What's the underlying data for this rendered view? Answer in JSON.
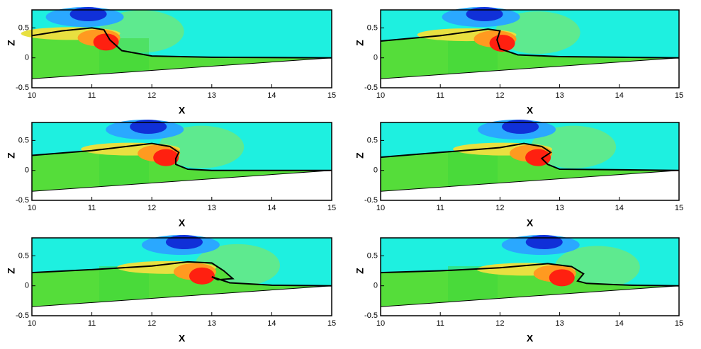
{
  "chart_data": [
    {
      "type": "contour",
      "x_label": "X",
      "y_label": "Z",
      "xlim": [
        10,
        15
      ],
      "ylim": [
        -0.5,
        0.8
      ],
      "xticks": [
        10,
        11,
        12,
        13,
        14,
        15
      ],
      "yticks": [
        -0.5,
        0,
        0.5
      ],
      "series": [
        {
          "color": "#000000",
          "x": [
            10,
            10.5,
            11,
            11.2,
            11.3,
            11.5,
            12,
            13,
            15
          ],
          "values": [
            0.37,
            0.45,
            0.5,
            0.47,
            0.3,
            0.12,
            0.03,
            0.01,
            0
          ]
        }
      ]
    },
    {
      "type": "contour",
      "x_label": "X",
      "y_label": "Z",
      "xlim": [
        10,
        15
      ],
      "ylim": [
        -0.5,
        0.8
      ],
      "xticks": [
        10,
        11,
        12,
        13,
        14,
        15
      ],
      "yticks": [
        -0.5,
        0,
        0.5
      ],
      "series": [
        {
          "color": "#000000",
          "x": [
            10,
            11,
            11.8,
            12,
            11.95,
            12,
            12.3,
            13,
            15
          ],
          "values": [
            0.28,
            0.37,
            0.48,
            0.45,
            0.3,
            0.15,
            0.05,
            0.02,
            0
          ]
        }
      ]
    },
    {
      "type": "contour",
      "x_label": "X",
      "y_label": "Z",
      "xlim": [
        10,
        15
      ],
      "ylim": [
        -0.5,
        0.8
      ],
      "xticks": [
        10,
        11,
        12,
        13,
        14,
        15
      ],
      "yticks": [
        -0.5,
        0,
        0.5
      ],
      "series": [
        {
          "color": "#000000",
          "x": [
            10,
            11,
            12,
            12.3,
            12.45,
            12.4,
            12.4,
            12.6,
            13,
            15
          ],
          "values": [
            0.25,
            0.33,
            0.45,
            0.4,
            0.3,
            0.2,
            0.1,
            0.02,
            0,
            0
          ]
        }
      ]
    },
    {
      "type": "contour",
      "x_label": "X",
      "y_label": "Z",
      "xlim": [
        10,
        15
      ],
      "ylim": [
        -0.5,
        0.8
      ],
      "xticks": [
        10,
        11,
        12,
        13,
        14,
        15
      ],
      "yticks": [
        -0.5,
        0,
        0.5
      ],
      "series": [
        {
          "color": "#000000",
          "x": [
            10,
            11,
            12,
            12.4,
            12.7,
            12.85,
            12.7,
            12.8,
            13,
            15
          ],
          "values": [
            0.22,
            0.3,
            0.38,
            0.45,
            0.4,
            0.3,
            0.2,
            0.1,
            0.02,
            0
          ]
        }
      ]
    },
    {
      "type": "contour",
      "x_label": "X",
      "y_label": "Z",
      "xlim": [
        10,
        15
      ],
      "ylim": [
        -0.5,
        0.8
      ],
      "xticks": [
        10,
        11,
        12,
        13,
        14,
        15
      ],
      "yticks": [
        -0.5,
        0,
        0.5
      ],
      "series": [
        {
          "color": "#000000",
          "x": [
            10,
            11,
            12,
            12.6,
            13,
            13.2,
            13.35,
            13.1,
            13.0,
            13.3,
            14,
            15
          ],
          "values": [
            0.22,
            0.27,
            0.33,
            0.4,
            0.38,
            0.25,
            0.12,
            0.1,
            0.15,
            0.05,
            0.01,
            0
          ]
        }
      ]
    },
    {
      "type": "contour",
      "x_label": "X",
      "y_label": "Z",
      "xlim": [
        10,
        15
      ],
      "ylim": [
        -0.5,
        0.8
      ],
      "xticks": [
        10,
        11,
        12,
        13,
        14,
        15
      ],
      "yticks": [
        -0.5,
        0,
        0.5
      ],
      "series": [
        {
          "color": "#000000",
          "x": [
            10,
            11,
            12,
            12.8,
            13.2,
            13.4,
            13.3,
            13.45,
            13.9,
            14.2,
            15
          ],
          "values": [
            0.22,
            0.25,
            0.3,
            0.37,
            0.32,
            0.2,
            0.08,
            0.04,
            0.02,
            0.01,
            0
          ]
        }
      ]
    }
  ]
}
